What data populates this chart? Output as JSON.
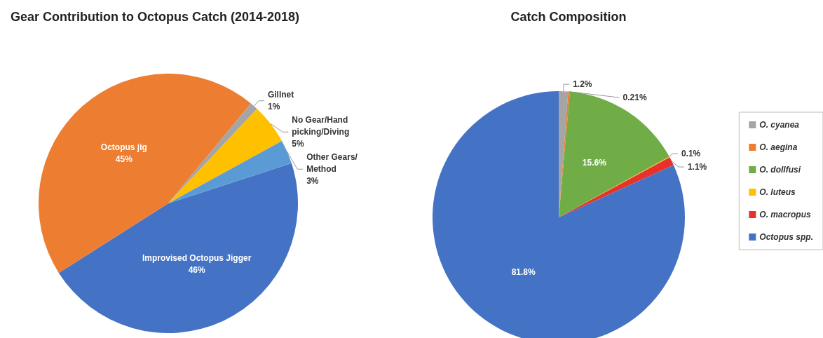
{
  "chart_data": [
    {
      "type": "pie",
      "title": "Gear Contribution to Octopus Catch (2014-2018)",
      "categories": [
        "Improvised Octopus Jigger",
        "Octopus jig",
        "Gillnet",
        "No Gear/Hand picking/Diving",
        "Other Gears/Method"
      ],
      "values": [
        46,
        45,
        1,
        5,
        3
      ],
      "value_labels": [
        "46%",
        "45%",
        "1%",
        "5%",
        "3%"
      ],
      "colors": [
        "#4472c4",
        "#ed7d31",
        "#a5a5a5",
        "#ffc000",
        "#5b9bd5"
      ],
      "legend": false
    },
    {
      "type": "pie",
      "title": "Catch Composition",
      "categories": [
        "O. cyanea",
        "O. aegina",
        "O. dollfusi",
        "O. luteus",
        "O. macropus",
        "Octopus spp."
      ],
      "values": [
        1.2,
        0.21,
        15.6,
        0.1,
        1.1,
        81.8
      ],
      "value_labels": [
        "1.2%",
        "0.21%",
        "15.6%",
        "0.1%",
        "1.1%",
        "81.8%"
      ],
      "colors": [
        "#a5a5a5",
        "#ed7d31",
        "#70ad47",
        "#ffc000",
        "#e8312a",
        "#4472c4"
      ],
      "legend": "right"
    }
  ]
}
